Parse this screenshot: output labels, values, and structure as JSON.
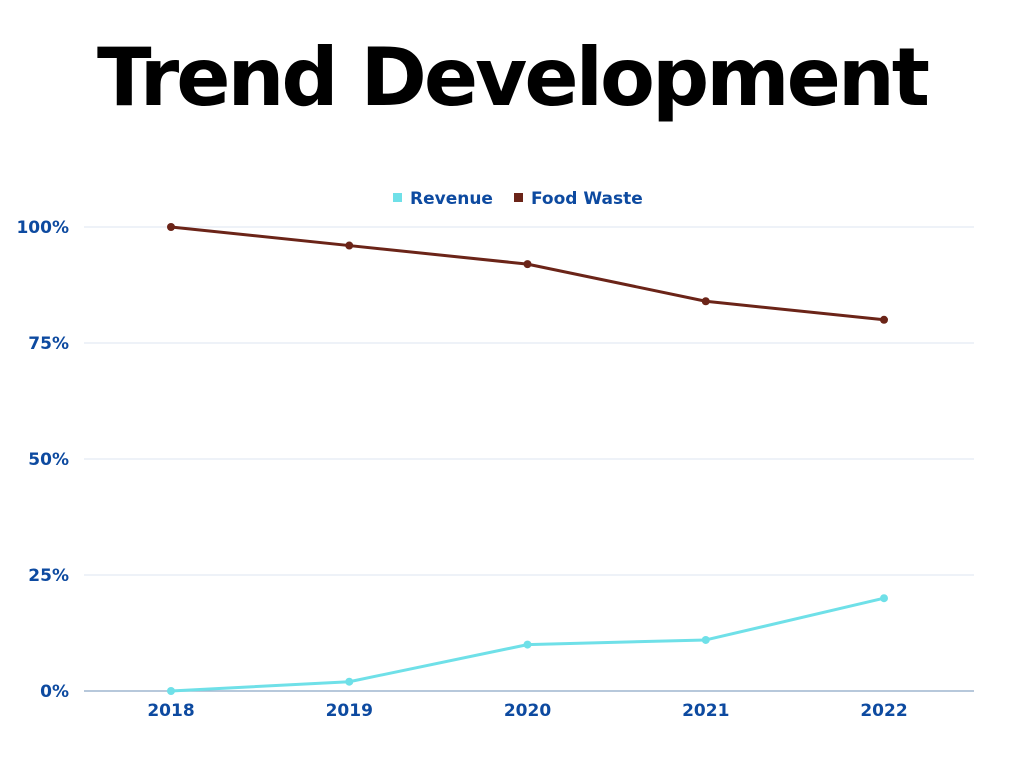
{
  "title": "Trend Development",
  "colors": {
    "text_accent": "#0d4aa0",
    "grid": "#dde6f0",
    "axis": "#9fb6cf",
    "revenue": "#6fe0e8",
    "food_waste": "#6b2418"
  },
  "chart_data": {
    "type": "line",
    "title": "Trend Development",
    "xlabel": "",
    "ylabel": "",
    "categories": [
      "2018",
      "2019",
      "2020",
      "2021",
      "2022"
    ],
    "ylim": [
      0,
      100
    ],
    "yticks": [
      0,
      25,
      50,
      75,
      100
    ],
    "ytick_labels": [
      "0%",
      "25%",
      "50%",
      "75%",
      "100%"
    ],
    "grid": true,
    "legend_position": "top-center",
    "series": [
      {
        "name": "Revenue",
        "color": "#6fe0e8",
        "values": [
          0,
          2,
          10,
          11,
          20
        ]
      },
      {
        "name": "Food Waste",
        "color": "#6b2418",
        "values": [
          100,
          96,
          92,
          84,
          80
        ]
      }
    ]
  }
}
